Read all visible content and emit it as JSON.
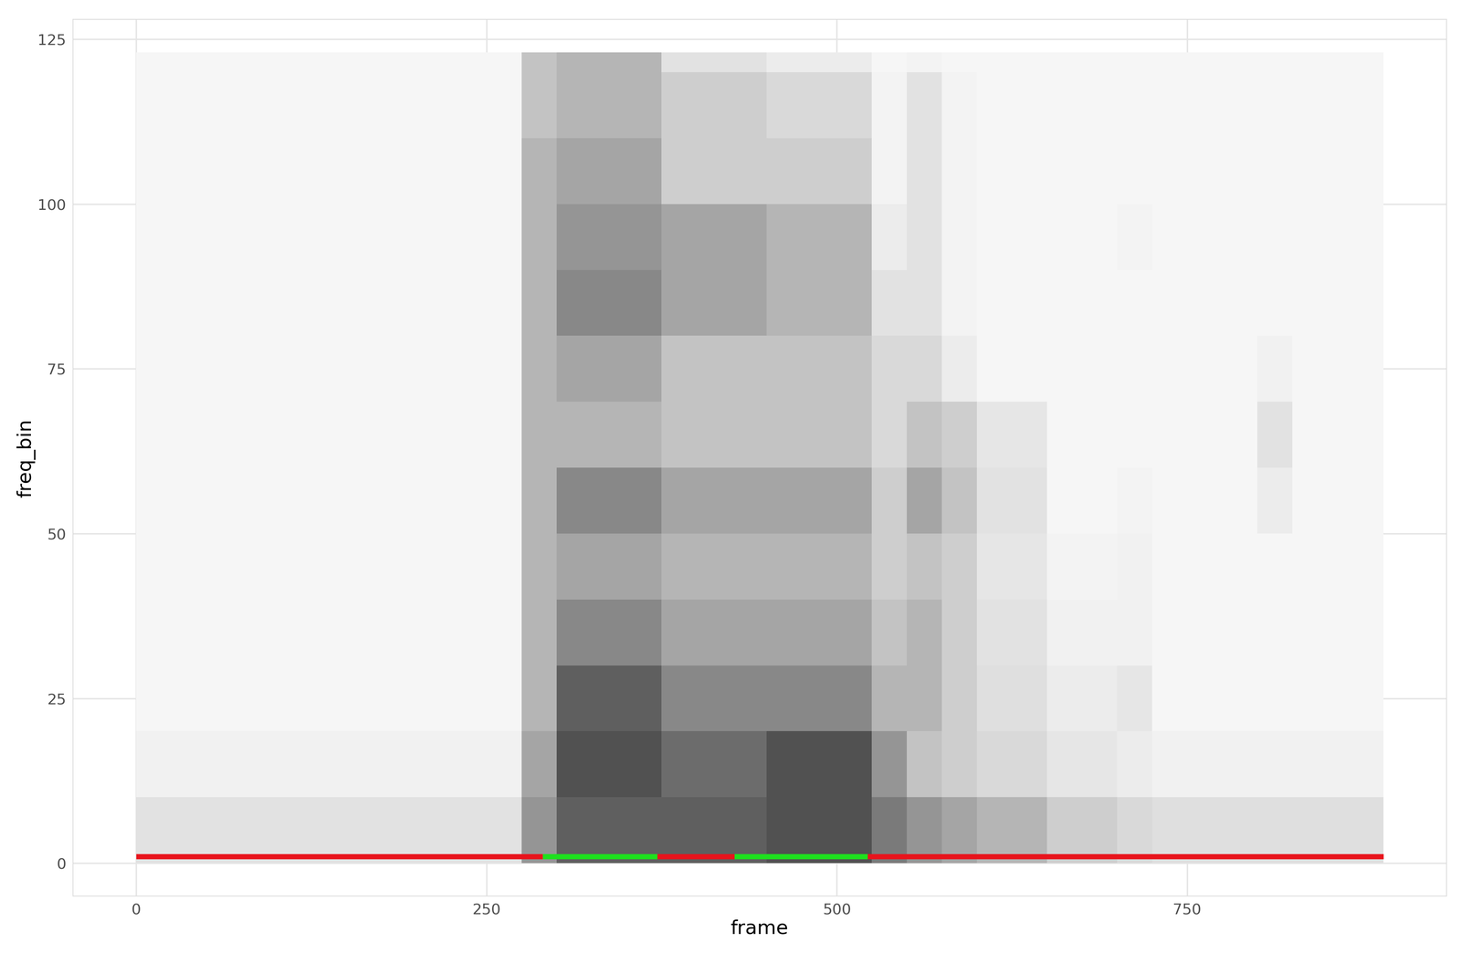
{
  "chart_data": {
    "type": "heatmap",
    "x_label": "frame",
    "y_label": "freq_bin",
    "xlim": [
      -45,
      935
    ],
    "ylim": [
      -5,
      128
    ],
    "xticks": [
      0,
      250,
      500,
      750
    ],
    "yticks": [
      0,
      25,
      50,
      75,
      100,
      125
    ],
    "grid": true,
    "x_edges": [
      0,
      25,
      50,
      75,
      100,
      125,
      150,
      175,
      200,
      225,
      250,
      275,
      300,
      325,
      350,
      375,
      400,
      425,
      450,
      475,
      500,
      525,
      550,
      575,
      600,
      625,
      650,
      675,
      700,
      725,
      750,
      775,
      800,
      825,
      850,
      875,
      890
    ],
    "y_edges": [
      0,
      10,
      20,
      30,
      40,
      50,
      60,
      70,
      80,
      90,
      100,
      110,
      120,
      123
    ],
    "color_range": [
      0,
      1
    ],
    "cells_by_frame": [
      [
        0.2,
        0.12,
        0.08,
        0.08,
        0.08,
        0.08,
        0.08,
        0.08,
        0.08,
        0.08,
        0.08,
        0.08,
        0.08
      ],
      [
        0.2,
        0.12,
        0.08,
        0.08,
        0.08,
        0.08,
        0.08,
        0.08,
        0.08,
        0.08,
        0.08,
        0.08,
        0.08
      ],
      [
        0.2,
        0.12,
        0.08,
        0.08,
        0.08,
        0.08,
        0.08,
        0.08,
        0.08,
        0.08,
        0.08,
        0.08,
        0.08
      ],
      [
        0.2,
        0.12,
        0.08,
        0.08,
        0.08,
        0.08,
        0.08,
        0.08,
        0.08,
        0.08,
        0.08,
        0.08,
        0.08
      ],
      [
        0.2,
        0.12,
        0.08,
        0.08,
        0.08,
        0.08,
        0.08,
        0.08,
        0.08,
        0.08,
        0.08,
        0.08,
        0.08
      ],
      [
        0.2,
        0.12,
        0.08,
        0.08,
        0.08,
        0.08,
        0.08,
        0.08,
        0.08,
        0.08,
        0.08,
        0.08,
        0.08
      ],
      [
        0.2,
        0.12,
        0.08,
        0.08,
        0.08,
        0.08,
        0.08,
        0.08,
        0.08,
        0.08,
        0.08,
        0.08,
        0.08
      ],
      [
        0.2,
        0.12,
        0.08,
        0.08,
        0.08,
        0.08,
        0.08,
        0.08,
        0.08,
        0.08,
        0.08,
        0.08,
        0.08
      ],
      [
        0.2,
        0.12,
        0.08,
        0.08,
        0.08,
        0.08,
        0.08,
        0.08,
        0.08,
        0.08,
        0.08,
        0.08,
        0.08
      ],
      [
        0.2,
        0.12,
        0.08,
        0.08,
        0.08,
        0.08,
        0.08,
        0.08,
        0.08,
        0.08,
        0.08,
        0.08,
        0.08
      ],
      [
        0.2,
        0.12,
        0.08,
        0.08,
        0.08,
        0.08,
        0.08,
        0.08,
        0.08,
        0.08,
        0.08,
        0.08,
        0.08
      ],
      [
        0.5,
        0.45,
        0.4,
        0.4,
        0.4,
        0.4,
        0.4,
        0.4,
        0.4,
        0.4,
        0.4,
        0.35,
        0.35
      ],
      [
        0.7,
        0.75,
        0.7,
        0.55,
        0.45,
        0.55,
        0.4,
        0.45,
        0.55,
        0.5,
        0.45,
        0.4,
        0.4
      ],
      [
        0.7,
        0.75,
        0.7,
        0.55,
        0.45,
        0.55,
        0.4,
        0.45,
        0.55,
        0.5,
        0.45,
        0.4,
        0.4
      ],
      [
        0.7,
        0.75,
        0.7,
        0.55,
        0.45,
        0.55,
        0.4,
        0.45,
        0.55,
        0.5,
        0.45,
        0.4,
        0.4
      ],
      [
        0.7,
        0.65,
        0.55,
        0.45,
        0.4,
        0.45,
        0.35,
        0.35,
        0.45,
        0.45,
        0.3,
        0.3,
        0.2
      ],
      [
        0.7,
        0.65,
        0.55,
        0.45,
        0.4,
        0.45,
        0.35,
        0.35,
        0.45,
        0.45,
        0.3,
        0.3,
        0.2
      ],
      [
        0.7,
        0.65,
        0.55,
        0.45,
        0.4,
        0.45,
        0.35,
        0.35,
        0.45,
        0.45,
        0.3,
        0.3,
        0.2
      ],
      [
        0.75,
        0.75,
        0.55,
        0.45,
        0.4,
        0.45,
        0.35,
        0.35,
        0.4,
        0.4,
        0.3,
        0.25,
        0.15
      ],
      [
        0.75,
        0.75,
        0.55,
        0.45,
        0.4,
        0.45,
        0.35,
        0.35,
        0.4,
        0.4,
        0.3,
        0.25,
        0.15
      ],
      [
        0.75,
        0.75,
        0.55,
        0.45,
        0.4,
        0.45,
        0.35,
        0.35,
        0.4,
        0.4,
        0.3,
        0.25,
        0.15
      ],
      [
        0.6,
        0.5,
        0.4,
        0.35,
        0.3,
        0.3,
        0.25,
        0.25,
        0.2,
        0.15,
        0.1,
        0.1,
        0.08
      ],
      [
        0.5,
        0.35,
        0.4,
        0.4,
        0.35,
        0.45,
        0.35,
        0.25,
        0.2,
        0.2,
        0.2,
        0.2,
        0.1
      ],
      [
        0.45,
        0.3,
        0.3,
        0.3,
        0.3,
        0.35,
        0.3,
        0.15,
        0.1,
        0.1,
        0.1,
        0.1,
        0.08
      ],
      [
        0.4,
        0.25,
        0.22,
        0.2,
        0.18,
        0.2,
        0.18,
        0.08,
        0.08,
        0.08,
        0.08,
        0.08,
        0.08
      ],
      [
        0.4,
        0.25,
        0.22,
        0.2,
        0.18,
        0.2,
        0.18,
        0.08,
        0.08,
        0.08,
        0.08,
        0.08,
        0.08
      ],
      [
        0.3,
        0.18,
        0.15,
        0.12,
        0.1,
        0.08,
        0.08,
        0.08,
        0.08,
        0.08,
        0.08,
        0.08,
        0.08
      ],
      [
        0.3,
        0.18,
        0.15,
        0.12,
        0.1,
        0.08,
        0.08,
        0.08,
        0.08,
        0.08,
        0.08,
        0.08,
        0.08
      ],
      [
        0.25,
        0.15,
        0.18,
        0.12,
        0.12,
        0.1,
        0.08,
        0.08,
        0.08,
        0.1,
        0.08,
        0.08,
        0.08
      ],
      [
        0.22,
        0.12,
        0.08,
        0.08,
        0.08,
        0.08,
        0.08,
        0.08,
        0.08,
        0.08,
        0.08,
        0.08,
        0.08
      ],
      [
        0.22,
        0.12,
        0.08,
        0.08,
        0.08,
        0.08,
        0.08,
        0.08,
        0.08,
        0.08,
        0.08,
        0.08,
        0.08
      ],
      [
        0.22,
        0.12,
        0.08,
        0.08,
        0.08,
        0.08,
        0.08,
        0.08,
        0.08,
        0.08,
        0.08,
        0.08,
        0.08
      ],
      [
        0.22,
        0.12,
        0.08,
        0.08,
        0.08,
        0.15,
        0.2,
        0.12,
        0.08,
        0.08,
        0.08,
        0.08,
        0.08
      ],
      [
        0.22,
        0.12,
        0.08,
        0.08,
        0.08,
        0.08,
        0.08,
        0.08,
        0.08,
        0.08,
        0.08,
        0.08,
        0.08
      ],
      [
        0.22,
        0.12,
        0.08,
        0.08,
        0.08,
        0.08,
        0.08,
        0.08,
        0.08,
        0.08,
        0.08,
        0.08,
        0.08
      ],
      [
        0.22,
        0.12,
        0.08,
        0.08,
        0.08,
        0.08,
        0.08,
        0.08,
        0.08,
        0.08,
        0.08,
        0.08,
        0.08
      ]
    ],
    "line_y": 1,
    "segments": [
      {
        "start": 0,
        "end": 290,
        "color": "#e8141c"
      },
      {
        "start": 290,
        "end": 372,
        "color": "#1ee01e"
      },
      {
        "start": 372,
        "end": 427,
        "color": "#e8141c"
      },
      {
        "start": 427,
        "end": 522,
        "color": "#1ee01e"
      },
      {
        "start": 522,
        "end": 890,
        "color": "#e8141c"
      }
    ]
  }
}
